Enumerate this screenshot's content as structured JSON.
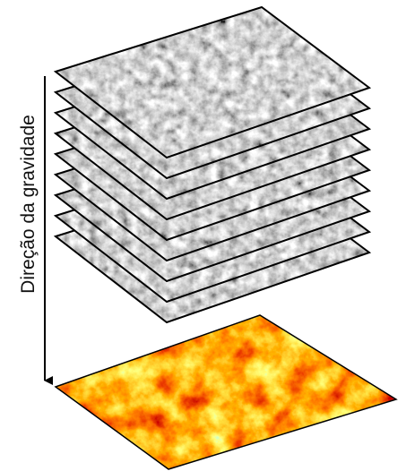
{
  "labels": {
    "gravity_direction": "Direção da gravidade"
  }
}
